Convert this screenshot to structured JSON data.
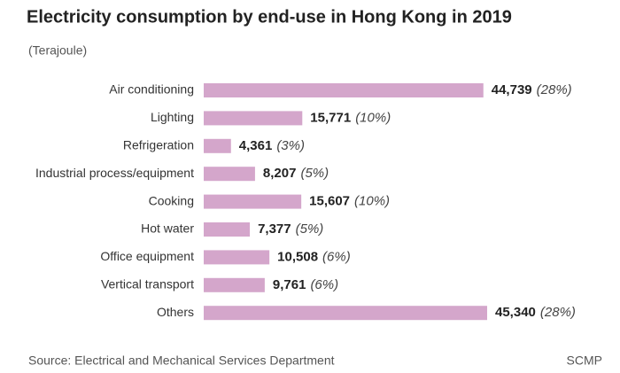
{
  "chart_data": {
    "type": "bar",
    "orientation": "horizontal",
    "title": "Electricity consumption by end-use in Hong Kong in 2019",
    "subtitle": "(Terajoule)",
    "categories": [
      "Air conditioning",
      "Lighting",
      "Refrigeration",
      "Industrial process/equipment",
      "Cooking",
      "Hot water",
      "Office equipment",
      "Vertical transport",
      "Others"
    ],
    "values": [
      44739,
      15771,
      4361,
      8207,
      15607,
      7377,
      10508,
      9761,
      45340
    ],
    "value_labels": [
      "44,739",
      "15,771",
      "4,361",
      "8,207",
      "15,607",
      "7,377",
      "10,508",
      "9,761",
      "45,340"
    ],
    "shares": [
      28,
      10,
      3,
      5,
      10,
      5,
      6,
      6,
      28
    ],
    "share_labels": [
      "(28%)",
      "(10%)",
      "(3%)",
      "(5%)",
      "(10%)",
      "(5%)",
      "(6%)",
      "(6%)",
      "(28%)"
    ],
    "color": "#d4a6cb",
    "source": "Source: Electrical and Mechanical Services Department",
    "credit": "SCMP"
  }
}
